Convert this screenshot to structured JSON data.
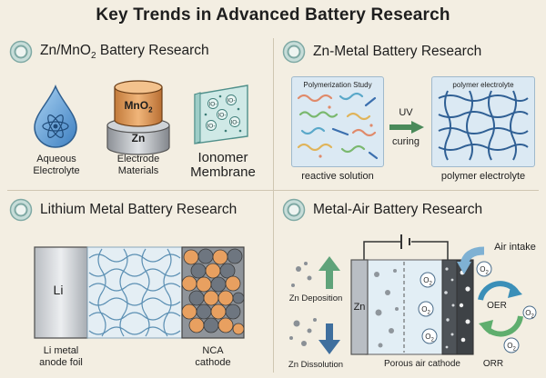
{
  "title": "Key Trends in Advanced Battery Research",
  "zn_mno2": {
    "heading_main": "Zn/MnO",
    "heading_sub": "2",
    "heading_tail": " Battery Research",
    "aqueous_line1": "Aqueous",
    "aqueous_line2": "Electrolyte",
    "electrode_line1": "Electrode",
    "electrode_line2": "Materials",
    "ionomer_line1": "Ionomer",
    "ionomer_line2": "Membrane",
    "mno2_label": "MnO",
    "mno2_sub": "2",
    "zn_label": "Zn",
    "io_label": "IO-"
  },
  "zn_metal": {
    "heading": "Zn-Metal Battery Research",
    "panel1_title": "Polymerization Study",
    "panel2_title": "polymer electrolyte",
    "uv_label": "UV",
    "curing_label": "curing",
    "caption_left": "reactive solution",
    "caption_right": "polymer electrolyte"
  },
  "lithium": {
    "heading": "Lithium Metal Battery Research",
    "li_label": "Li",
    "caption_left_1": "Li metal",
    "caption_left_2": "anode foil",
    "caption_right_1": "NCA",
    "caption_right_2": "cathode"
  },
  "metal_air": {
    "heading": "Metal-Air Battery Research",
    "air_intake": "Air intake",
    "zn_deposition": "Zn Deposition",
    "zn_dissolution": "Zn Dissolution",
    "zn_label": "Zn",
    "o2_main": "O",
    "o2_sub": "2",
    "oer": "OER",
    "orr": "ORR",
    "porous_cathode": "Porous air cathode"
  },
  "colors": {
    "ring_outer": "#8fb7b3",
    "water_drop": "#5b9bd5",
    "mno2_top": "#d99a5b",
    "green_arrow": "#5fa37a",
    "blue_arrow": "#3f6f9e",
    "cathode_orange": "#e8a060",
    "cathode_gray": "#6e7680"
  }
}
